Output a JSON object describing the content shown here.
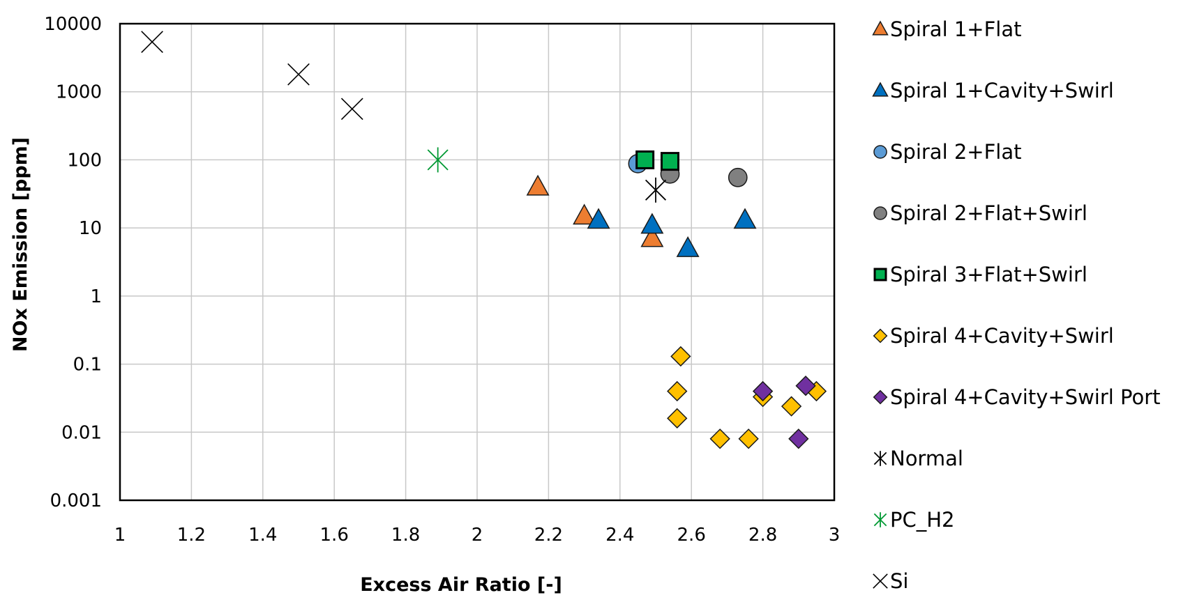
{
  "chart_data": {
    "type": "scatter",
    "title": "",
    "xlabel": "Excess Air Ratio [-]",
    "ylabel": "NOx Emission [ppm]",
    "xlim": [
      1,
      3
    ],
    "ylim": [
      0.001,
      10000
    ],
    "yscale": "log",
    "grid": true,
    "legend_position": "right",
    "x_ticks": [
      "1",
      "1.2",
      "1.4",
      "1.6",
      "1.8",
      "2",
      "2.2",
      "2.4",
      "2.6",
      "2.8",
      "3"
    ],
    "y_ticks": [
      "0.001",
      "0.01",
      "0.1",
      "1",
      "10",
      "100",
      "1000",
      "10000"
    ],
    "series": [
      {
        "name": "Spiral 1+Flat",
        "marker": "triangle",
        "color": "#ed7d31",
        "points": [
          [
            2.17,
            40
          ],
          [
            2.3,
            15
          ],
          [
            2.49,
            7
          ]
        ]
      },
      {
        "name": "Spiral 1+Cavity+Swirl",
        "marker": "triangle",
        "color": "#0070c0",
        "points": [
          [
            2.34,
            13
          ],
          [
            2.49,
            11
          ],
          [
            2.59,
            5
          ],
          [
            2.75,
            13
          ]
        ]
      },
      {
        "name": "Spiral 2+Flat",
        "marker": "circle",
        "color": "#5b9bd5",
        "points": [
          [
            2.45,
            88
          ]
        ]
      },
      {
        "name": "Spiral 2+Flat+Swirl",
        "marker": "circle",
        "color": "#808080",
        "points": [
          [
            2.54,
            62
          ],
          [
            2.73,
            55
          ]
        ]
      },
      {
        "name": "Spiral 3+Flat+Swirl",
        "marker": "square",
        "color": "#00b050",
        "points": [
          [
            2.47,
            100
          ],
          [
            2.54,
            95
          ]
        ]
      },
      {
        "name": "Spiral 4+Cavity+Swirl",
        "marker": "diamond",
        "color": "#ffc000",
        "points": [
          [
            2.57,
            0.13
          ],
          [
            2.56,
            0.04
          ],
          [
            2.56,
            0.016
          ],
          [
            2.68,
            0.008
          ],
          [
            2.76,
            0.008
          ],
          [
            2.8,
            0.033
          ],
          [
            2.88,
            0.024
          ],
          [
            2.95,
            0.04
          ]
        ]
      },
      {
        "name": "Spiral 4+Cavity+Swirl Port",
        "marker": "diamond",
        "color": "#7030a0",
        "points": [
          [
            2.8,
            0.04
          ],
          [
            2.92,
            0.048
          ],
          [
            2.9,
            0.008
          ]
        ]
      },
      {
        "name": "Normal",
        "marker": "star",
        "color": "#000000",
        "points": [
          [
            2.5,
            36
          ]
        ]
      },
      {
        "name": "PC_H2",
        "marker": "star",
        "color": "#009933",
        "points": [
          [
            1.89,
            100
          ]
        ]
      },
      {
        "name": "Si",
        "marker": "x",
        "color": "#000000",
        "points": [
          [
            1.09,
            5400
          ],
          [
            1.5,
            1800
          ],
          [
            1.65,
            560
          ]
        ]
      }
    ]
  }
}
